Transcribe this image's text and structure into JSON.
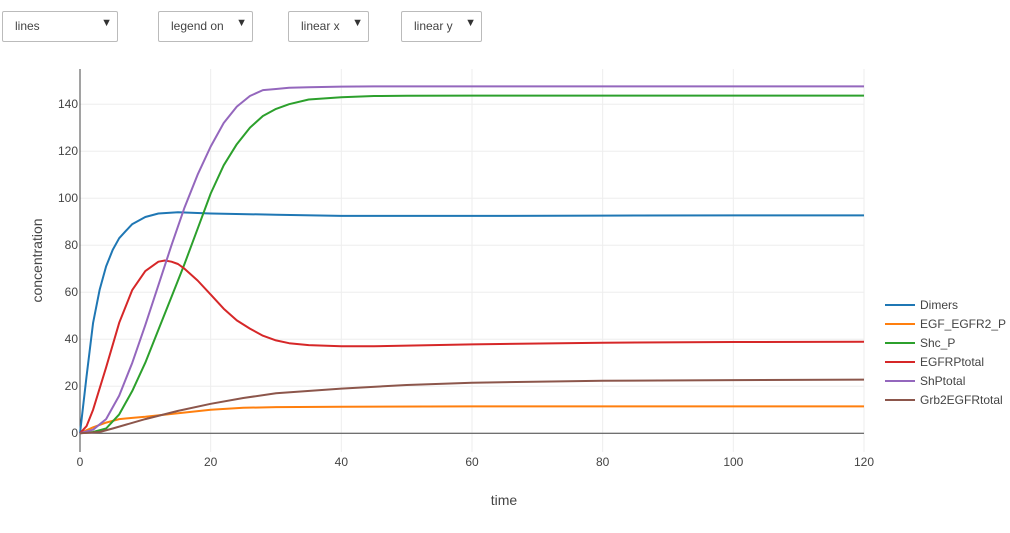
{
  "controls": {
    "mode": "lines",
    "legend": "legend on",
    "xscale": "linear x",
    "yscale": "linear y",
    "arrow": "▼"
  },
  "chart_data": {
    "type": "line",
    "title": "",
    "xlabel": "time",
    "ylabel": "concentration",
    "xlim": [
      0,
      120
    ],
    "ylim": [
      -8,
      155
    ],
    "xticks": [
      0,
      20,
      40,
      60,
      80,
      100,
      120
    ],
    "yticks": [
      0,
      20,
      40,
      60,
      80,
      100,
      120,
      140
    ],
    "grid": true,
    "legend_position": "right",
    "series": [
      {
        "name": "Dimers",
        "color": "#1f77b4",
        "x": [
          0,
          1,
          2,
          3,
          4,
          5,
          6,
          7,
          8,
          10,
          12,
          15,
          20,
          30,
          40,
          60,
          80,
          100,
          120
        ],
        "y": [
          0,
          24,
          47,
          61,
          71,
          78,
          83,
          86,
          89,
          92,
          93.5,
          94,
          93.5,
          93,
          92.5,
          92.5,
          92.6,
          92.7,
          92.7
        ]
      },
      {
        "name": "EGF_EGFR2_P",
        "color": "#ff7f0e",
        "x": [
          0,
          2,
          4,
          6,
          8,
          10,
          15,
          20,
          25,
          30,
          40,
          60,
          80,
          100,
          120
        ],
        "y": [
          0,
          2.5,
          4.5,
          6,
          6.5,
          7,
          8.5,
          10,
          10.8,
          11.1,
          11.3,
          11.4,
          11.4,
          11.4,
          11.4
        ]
      },
      {
        "name": "Shc_P",
        "color": "#2ca02c",
        "x": [
          0,
          2,
          4,
          6,
          8,
          10,
          12,
          14,
          16,
          18,
          20,
          22,
          24,
          26,
          28,
          30,
          32,
          35,
          40,
          45,
          50,
          60,
          80,
          100,
          120
        ],
        "y": [
          0,
          0.5,
          2,
          8,
          18,
          30,
          44,
          58,
          72,
          87,
          102,
          114,
          123,
          130,
          135,
          138,
          140,
          142,
          143,
          143.5,
          143.6,
          143.7,
          143.7,
          143.7,
          143.7
        ]
      },
      {
        "name": "EGFRPtotal",
        "color": "#d62728",
        "x": [
          0,
          1,
          2,
          4,
          6,
          8,
          10,
          12,
          13,
          14,
          15,
          16,
          18,
          20,
          22,
          24,
          26,
          28,
          30,
          32,
          35,
          40,
          45,
          60,
          80,
          100,
          120
        ],
        "y": [
          0,
          3,
          10,
          28,
          47,
          61,
          69,
          73,
          73.5,
          73,
          72,
          70,
          65,
          59,
          53,
          48,
          44.5,
          41.5,
          39.5,
          38.3,
          37.5,
          37,
          37,
          37.8,
          38.5,
          38.8,
          38.9
        ]
      },
      {
        "name": "ShPtotal",
        "color": "#9467bd",
        "x": [
          0,
          2,
          4,
          6,
          8,
          10,
          12,
          14,
          16,
          18,
          20,
          22,
          24,
          26,
          28,
          30,
          32,
          35,
          40,
          45,
          50,
          60,
          80,
          100,
          120
        ],
        "y": [
          0,
          1.5,
          6,
          16,
          30,
          46,
          63,
          80,
          96,
          110,
          122,
          132,
          139,
          143.5,
          146,
          146.5,
          147,
          147.2,
          147.5,
          147.6,
          147.6,
          147.6,
          147.6,
          147.6,
          147.6
        ]
      },
      {
        "name": "Grb2EGFRtotal",
        "color": "#8c564b",
        "x": [
          0,
          3,
          5,
          10,
          15,
          20,
          25,
          30,
          40,
          50,
          60,
          80,
          100,
          120
        ],
        "y": [
          0,
          0.5,
          2,
          6,
          9.5,
          12.5,
          15,
          17,
          19,
          20.5,
          21.5,
          22.3,
          22.6,
          22.8
        ]
      }
    ]
  }
}
